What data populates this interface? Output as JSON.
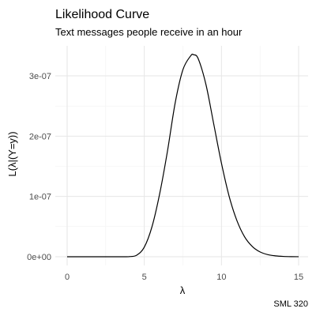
{
  "chart_data": {
    "type": "line",
    "title": "Likelihood Curve",
    "subtitle": "Text messages people receive in an hour",
    "xlabel": "λ",
    "ylabel": "L(λ|(Y=y))",
    "caption": "SML 320",
    "xlim": [
      0,
      15
    ],
    "ylim": [
      0,
      3.35e-07
    ],
    "x_ticks": [
      0,
      5,
      10,
      15
    ],
    "x_tick_labels": [
      "0",
      "5",
      "10",
      "15"
    ],
    "y_ticks": [
      0,
      1e-07,
      2e-07,
      3e-07
    ],
    "y_tick_labels": [
      "0e+00",
      "1e-07",
      "2e-07",
      "3e-07"
    ],
    "grid": true,
    "legend": "none",
    "line_color": "#000000",
    "series": [
      {
        "x": [
          0,
          0.5,
          1,
          1.5,
          2,
          2.5,
          3,
          3.5,
          4,
          4.5,
          5,
          5.5,
          6,
          6.5,
          7,
          7.5,
          8,
          8.2,
          8.5,
          9,
          9.5,
          10,
          10.5,
          11,
          11.5,
          12,
          12.5,
          13,
          13.5,
          14,
          14.5,
          15
        ],
        "y": [
          0,
          0,
          0,
          0,
          0,
          0,
          0,
          0,
          2e-10,
          2.5e-09,
          1.6e-08,
          5e-08,
          1.05e-07,
          1.75e-07,
          2.55e-07,
          3.1e-07,
          3.33e-07,
          3.35e-07,
          3.28e-07,
          2.85e-07,
          2.2e-07,
          1.55e-07,
          1e-07,
          6e-08,
          3.3e-08,
          1.7e-08,
          8e-09,
          3.5e-09,
          1.5e-09,
          6e-10,
          2e-10,
          1e-10
        ]
      }
    ]
  }
}
